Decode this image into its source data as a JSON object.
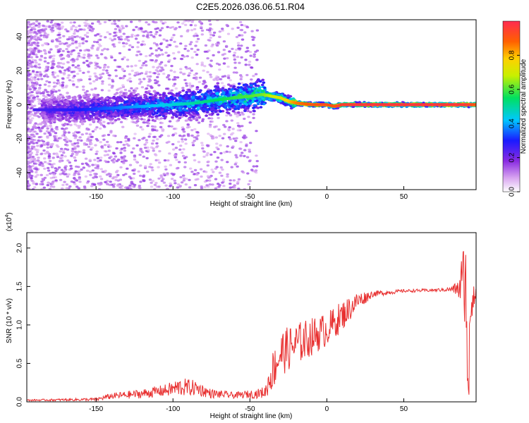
{
  "title": "C2E5.2026.036.06.51.R04",
  "colorbar": {
    "label": "Normalized spectral amplitude",
    "ticks": [
      "0.0",
      "0.2",
      "0.4",
      "0.6",
      "0.8"
    ],
    "range": [
      0,
      1
    ]
  },
  "chart_data": [
    {
      "type": "heatmap",
      "name": "spectrogram",
      "xlabel": "Height of straight line (km)",
      "ylabel": "Frequency (Hz)",
      "xlim": [
        -195,
        97
      ],
      "ylim": [
        -50,
        50
      ],
      "xticks": [
        "-150",
        "-100",
        "-50",
        "0",
        "50"
      ],
      "yticks": [
        "-40",
        "-20",
        "0",
        "20",
        "40"
      ],
      "grid": false,
      "ridge": {
        "x": [
          -185,
          -160,
          -140,
          -120,
          -100,
          -85,
          -70,
          -60,
          -50,
          -42,
          -36,
          -30,
          -25,
          -20,
          -10,
          0,
          5,
          10,
          30,
          60,
          90,
          97
        ],
        "y": [
          -3,
          -3,
          -2,
          -1,
          0,
          1,
          3,
          4,
          5,
          6,
          5,
          4,
          2,
          1,
          0,
          0,
          -1,
          0,
          0,
          0,
          0,
          0
        ],
        "amplitude": [
          0.25,
          0.3,
          0.35,
          0.4,
          0.45,
          0.5,
          0.55,
          0.58,
          0.6,
          0.62,
          0.68,
          0.72,
          0.78,
          0.85,
          0.9,
          0.92,
          0.9,
          0.95,
          0.97,
          0.97,
          0.97,
          0.9
        ]
      }
    },
    {
      "type": "line",
      "name": "snr",
      "xlabel": "Height of straight line (km)",
      "ylabel": "SNR (10 * v/v)",
      "y_multiplier": "(x10",
      "y_multiplier_exp": "4",
      "xlim": [
        -195,
        97
      ],
      "ylim": [
        0,
        2.2
      ],
      "xticks": [
        "-150",
        "-100",
        "-50",
        "0",
        "50"
      ],
      "yticks": [
        "0.0",
        "0.5",
        "1.0",
        "1.5",
        "2.0"
      ],
      "grid": false,
      "color": "#e83030",
      "envelope": {
        "x": [
          -195,
          -150,
          -140,
          -120,
          -105,
          -95,
          -85,
          -75,
          -60,
          -45,
          -40,
          -36,
          -30,
          -20,
          -10,
          0,
          10,
          20,
          30,
          50,
          70,
          80,
          85,
          88,
          90,
          92,
          95,
          97
        ],
        "y": [
          0.02,
          0.03,
          0.07,
          0.1,
          0.14,
          0.18,
          0.17,
          0.1,
          0.08,
          0.1,
          0.12,
          0.35,
          0.6,
          0.72,
          0.82,
          0.92,
          1.1,
          1.3,
          1.4,
          1.44,
          1.45,
          1.46,
          1.46,
          1.5,
          1.55,
          0.9,
          1.45,
          1.3
        ],
        "noise": [
          0.01,
          0.02,
          0.04,
          0.06,
          0.08,
          0.12,
          0.1,
          0.06,
          0.04,
          0.06,
          0.08,
          0.25,
          0.3,
          0.28,
          0.25,
          0.22,
          0.2,
          0.12,
          0.04,
          0.02,
          0.02,
          0.03,
          0.1,
          0.45,
          0.6,
          0.6,
          0.25,
          0.15
        ]
      }
    }
  ]
}
